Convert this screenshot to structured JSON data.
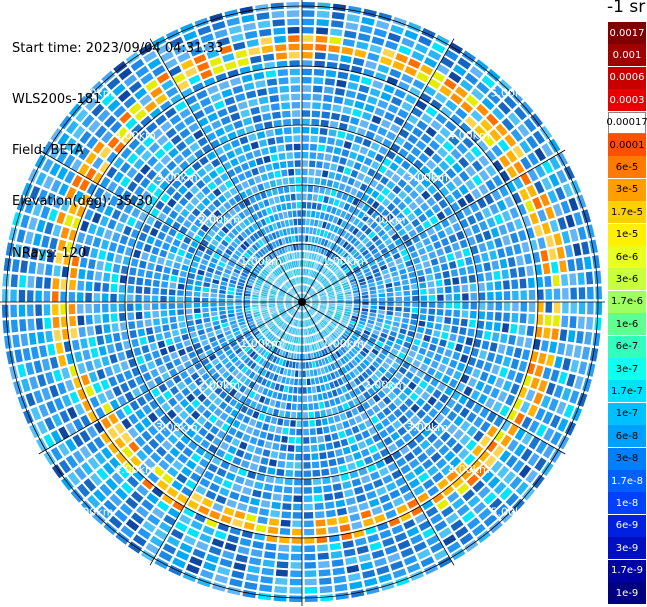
{
  "info": {
    "start_time": "Start time: 2023/09/04 04:31:33",
    "instrument": "WLS200s-181",
    "field": "Field: BETA",
    "elevation": "Elevation(deg): 35.30",
    "nrays": "NRays: 120"
  },
  "colorbar": {
    "title": "-1 sr",
    "levels": [
      {
        "label": "0.0017",
        "color": "#7f0000"
      },
      {
        "label": "0.001",
        "color": "#a00000"
      },
      {
        "label": "0.0006",
        "color": "#c80000"
      },
      {
        "label": "0.0003",
        "color": "#e80000"
      },
      {
        "label": "0.00017",
        "color": "#ffffff"
      },
      {
        "label": "0.0001",
        "color": "#ff5000"
      },
      {
        "label": "6e-5",
        "color": "#ff7a00"
      },
      {
        "label": "3e-5",
        "color": "#ffa000"
      },
      {
        "label": "1.7e-5",
        "color": "#ffd000"
      },
      {
        "label": "1e-5",
        "color": "#fff000"
      },
      {
        "label": "6e-6",
        "color": "#e8ff20"
      },
      {
        "label": "3e-6",
        "color": "#c8ff40"
      },
      {
        "label": "1.7e-6",
        "color": "#a0ff60"
      },
      {
        "label": "1e-6",
        "color": "#60ff90"
      },
      {
        "label": "6e-7",
        "color": "#30ffc0"
      },
      {
        "label": "3e-7",
        "color": "#10fff0"
      },
      {
        "label": "1.7e-7",
        "color": "#00e0ff"
      },
      {
        "label": "1e-7",
        "color": "#00c0ff"
      },
      {
        "label": "6e-8",
        "color": "#00a0ff"
      },
      {
        "label": "3e-8",
        "color": "#0080ff"
      },
      {
        "label": "1.7e-8",
        "color": "#0060ff"
      },
      {
        "label": "1e-8",
        "color": "#0040ff"
      },
      {
        "label": "6e-9",
        "color": "#0020e0"
      },
      {
        "label": "3e-9",
        "color": "#0010c0"
      },
      {
        "label": "1.7e-9",
        "color": "#0000a0"
      },
      {
        "label": "1e-9",
        "color": "#000080"
      }
    ]
  },
  "chart_data": {
    "type": "heatmap",
    "projection": "polar PPI scan",
    "field": "BETA",
    "n_rays": 120,
    "range_rings_km": [
      1.0,
      2.0,
      3.0,
      4.0,
      5.0
    ],
    "ring_labels": [
      "1.00km",
      "2.00km",
      "3.00km",
      "4.00km",
      "5.00km"
    ],
    "max_range_km": 7.0,
    "spoke_angles_deg": [
      0,
      30,
      60,
      90,
      120,
      150,
      180,
      210,
      240,
      270,
      300,
      330
    ],
    "background_level": "1e-7",
    "enhanced_band": {
      "range_km": [
        5.6,
        6.2
      ],
      "level": "6e-5"
    },
    "inner_region": {
      "range_km": [
        0,
        1.2
      ],
      "level": "1.7e-7"
    }
  }
}
